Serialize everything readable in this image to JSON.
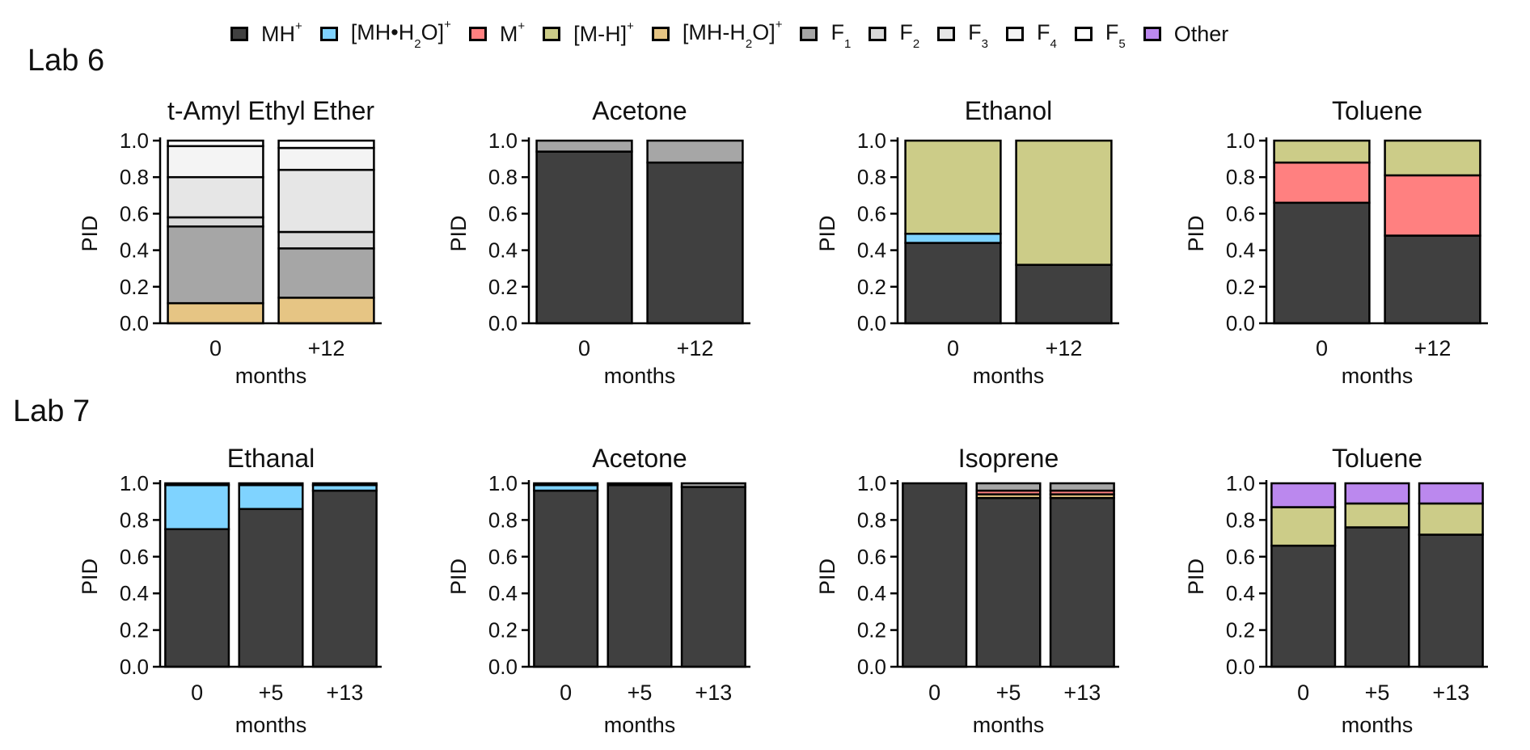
{
  "legend": [
    {
      "key": "MH",
      "base": "MH",
      "sup": "+",
      "sub": "",
      "tail": "",
      "color": "#404040"
    },
    {
      "key": "MHH2O",
      "base": "[MH•H",
      "sub": "2",
      "tail": "O]",
      "sup": "+",
      "color": "#7fd3ff"
    },
    {
      "key": "M",
      "base": "M",
      "sup": "+",
      "sub": "",
      "tail": "",
      "color": "#ff8080"
    },
    {
      "key": "MminusH",
      "base": "[M-H]",
      "sup": "+",
      "sub": "",
      "tail": "",
      "color": "#cccc88"
    },
    {
      "key": "MHminusH2O",
      "base": "[MH-H",
      "sub": "2",
      "tail": "O]",
      "sup": "+",
      "color": "#e6c584"
    },
    {
      "key": "F1",
      "base": "F",
      "sub": "1",
      "tail": "",
      "sup": "",
      "color": "#a6a6a6"
    },
    {
      "key": "F2",
      "base": "F",
      "sub": "2",
      "tail": "",
      "sup": "",
      "color": "#d9d9d9"
    },
    {
      "key": "F3",
      "base": "F",
      "sub": "3",
      "tail": "",
      "sup": "",
      "color": "#e6e6e6"
    },
    {
      "key": "F4",
      "base": "F",
      "sub": "4",
      "tail": "",
      "sup": "",
      "color": "#f4f4f4"
    },
    {
      "key": "F5",
      "base": "F",
      "sub": "5",
      "tail": "",
      "sup": "",
      "color": "#ffffff"
    },
    {
      "key": "Other",
      "base": "Other",
      "sup": "",
      "sub": "",
      "tail": "",
      "color": "#bb88ee"
    }
  ],
  "labs": [
    "Lab 6",
    "Lab 7"
  ],
  "chart_data": [
    {
      "type": "bar",
      "stacked": true,
      "lab": "Lab 6",
      "title": "t-Amyl Ethyl Ether",
      "xlabel": "months",
      "ylabel": "PID",
      "ylim": [
        0,
        1
      ],
      "yticks": [
        "0.0",
        "0.2",
        "0.4",
        "0.6",
        "0.8",
        "1.0"
      ],
      "categories": [
        "0",
        "+12"
      ],
      "series": [
        {
          "key": "MHminusH2O",
          "values": [
            0.11,
            0.14
          ]
        },
        {
          "key": "F1",
          "values": [
            0.42,
            0.27
          ]
        },
        {
          "key": "F2",
          "values": [
            0.05,
            0.09
          ]
        },
        {
          "key": "F3",
          "values": [
            0.22,
            0.34
          ]
        },
        {
          "key": "F4",
          "values": [
            0.17,
            0.12
          ]
        },
        {
          "key": "F5",
          "values": [
            0.03,
            0.04
          ]
        }
      ]
    },
    {
      "type": "bar",
      "stacked": true,
      "lab": "Lab 6",
      "title": "Acetone",
      "xlabel": "months",
      "ylabel": "PID",
      "ylim": [
        0,
        1
      ],
      "yticks": [
        "0.0",
        "0.2",
        "0.4",
        "0.6",
        "0.8",
        "1.0"
      ],
      "categories": [
        "0",
        "+12"
      ],
      "series": [
        {
          "key": "MH",
          "values": [
            0.94,
            0.88
          ]
        },
        {
          "key": "F1",
          "values": [
            0.06,
            0.12
          ]
        }
      ]
    },
    {
      "type": "bar",
      "stacked": true,
      "lab": "Lab 6",
      "title": "Ethanol",
      "xlabel": "months",
      "ylabel": "PID",
      "ylim": [
        0,
        1
      ],
      "yticks": [
        "0.0",
        "0.2",
        "0.4",
        "0.6",
        "0.8",
        "1.0"
      ],
      "categories": [
        "0",
        "+12"
      ],
      "series": [
        {
          "key": "MH",
          "values": [
            0.44,
            0.32
          ]
        },
        {
          "key": "MHH2O",
          "values": [
            0.05,
            0.0
          ]
        },
        {
          "key": "MminusH",
          "values": [
            0.51,
            0.68
          ]
        }
      ]
    },
    {
      "type": "bar",
      "stacked": true,
      "lab": "Lab 6",
      "title": "Toluene",
      "xlabel": "months",
      "ylabel": "PID",
      "ylim": [
        0,
        1
      ],
      "yticks": [
        "0.0",
        "0.2",
        "0.4",
        "0.6",
        "0.8",
        "1.0"
      ],
      "categories": [
        "0",
        "+12"
      ],
      "series": [
        {
          "key": "MH",
          "values": [
            0.66,
            0.48
          ]
        },
        {
          "key": "M",
          "values": [
            0.22,
            0.33
          ]
        },
        {
          "key": "MminusH",
          "values": [
            0.12,
            0.19
          ]
        }
      ]
    },
    {
      "type": "bar",
      "stacked": true,
      "lab": "Lab 7",
      "title": "Ethanal",
      "xlabel": "months",
      "ylabel": "PID",
      "ylim": [
        0,
        1
      ],
      "yticks": [
        "0.0",
        "0.2",
        "0.4",
        "0.6",
        "0.8",
        "1.0"
      ],
      "categories": [
        "0",
        "+5",
        "+13"
      ],
      "series": [
        {
          "key": "MH",
          "values": [
            0.75,
            0.86,
            0.96
          ]
        },
        {
          "key": "MHH2O",
          "values": [
            0.24,
            0.13,
            0.03
          ]
        },
        {
          "key": "F5",
          "values": [
            0.01,
            0.01,
            0.01
          ]
        }
      ]
    },
    {
      "type": "bar",
      "stacked": true,
      "lab": "Lab 7",
      "title": "Acetone",
      "xlabel": "months",
      "ylabel": "PID",
      "ylim": [
        0,
        1
      ],
      "yticks": [
        "0.0",
        "0.2",
        "0.4",
        "0.6",
        "0.8",
        "1.0"
      ],
      "categories": [
        "0",
        "+5",
        "+13"
      ],
      "series": [
        {
          "key": "MH",
          "values": [
            0.96,
            0.99,
            0.98
          ]
        },
        {
          "key": "MHH2O",
          "values": [
            0.03,
            0.0,
            0.0
          ]
        },
        {
          "key": "F1",
          "values": [
            0.01,
            0.01,
            0.02
          ]
        }
      ]
    },
    {
      "type": "bar",
      "stacked": true,
      "lab": "Lab 7",
      "title": "Isoprene",
      "xlabel": "months",
      "ylabel": "PID",
      "ylim": [
        0,
        1
      ],
      "yticks": [
        "0.0",
        "0.2",
        "0.4",
        "0.6",
        "0.8",
        "1.0"
      ],
      "categories": [
        "0",
        "+5",
        "+13"
      ],
      "series": [
        {
          "key": "MH",
          "values": [
            1.0,
            0.92,
            0.92
          ]
        },
        {
          "key": "MHminusH2O",
          "values": [
            0.0,
            0.02,
            0.02
          ]
        },
        {
          "key": "M",
          "values": [
            0.0,
            0.02,
            0.02
          ]
        },
        {
          "key": "F1",
          "values": [
            0.0,
            0.04,
            0.04
          ]
        }
      ]
    },
    {
      "type": "bar",
      "stacked": true,
      "lab": "Lab 7",
      "title": "Toluene",
      "xlabel": "months",
      "ylabel": "PID",
      "ylim": [
        0,
        1
      ],
      "yticks": [
        "0.0",
        "0.2",
        "0.4",
        "0.6",
        "0.8",
        "1.0"
      ],
      "categories": [
        "0",
        "+5",
        "+13"
      ],
      "series": [
        {
          "key": "MH",
          "values": [
            0.66,
            0.76,
            0.72
          ]
        },
        {
          "key": "MminusH",
          "values": [
            0.21,
            0.13,
            0.17
          ]
        },
        {
          "key": "Other",
          "values": [
            0.13,
            0.11,
            0.11
          ]
        }
      ]
    }
  ]
}
